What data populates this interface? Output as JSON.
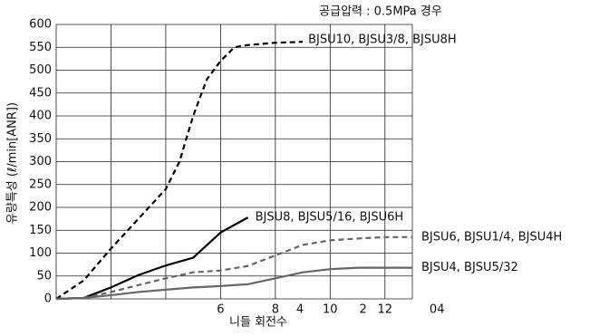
{
  "chart_data": {
    "type": "line",
    "annotation": "공급압력 : 0.5MPa 경우",
    "x_label": "니들 회전수",
    "y_label": "유량특성 (ℓ/min[ANR])",
    "xlim": [
      0,
      13
    ],
    "ylim": [
      0,
      600
    ],
    "yticks": [
      0,
      50,
      100,
      150,
      200,
      250,
      300,
      350,
      400,
      450,
      500,
      550,
      600
    ],
    "xgrid": [
      2,
      4,
      6,
      8,
      10,
      12
    ],
    "xticks": [
      6,
      8,
      10,
      12
    ],
    "x2ticks": [
      {
        "value": 8.9,
        "label": "4"
      },
      {
        "value": 11.2,
        "label": "2"
      },
      {
        "value": 13.9,
        "label": "04"
      }
    ],
    "grid": true,
    "series": [
      {
        "name": "BJSU10, BJSU3/8, BJSU8H",
        "color": "#000000",
        "dashed": true,
        "x": [
          0,
          1,
          2,
          3,
          4,
          4.5,
          5,
          5.5,
          6,
          6.5,
          7,
          8,
          9
        ],
        "values": [
          0,
          40,
          110,
          175,
          240,
          300,
          400,
          480,
          520,
          550,
          555,
          560,
          562
        ]
      },
      {
        "name": "BJSU8, BJSU5/16, BJSU6H",
        "color": "#000000",
        "dashed": false,
        "x": [
          0,
          1,
          2,
          3,
          4,
          5,
          6,
          7
        ],
        "values": [
          0,
          2,
          25,
          52,
          73,
          90,
          145,
          178
        ]
      },
      {
        "name": "BJSU6, BJSU1/4, BJSU4H",
        "color": "#666666",
        "dashed": true,
        "x": [
          0,
          1,
          2,
          3,
          4,
          5,
          6,
          7,
          8,
          9,
          10,
          11,
          12,
          13
        ],
        "values": [
          0,
          2,
          15,
          30,
          45,
          58,
          62,
          72,
          95,
          118,
          128,
          132,
          135,
          135
        ]
      },
      {
        "name": "BJSU4, BJSU5/32",
        "color": "#666666",
        "dashed": false,
        "x": [
          0,
          1,
          2,
          3,
          4,
          5,
          6,
          7,
          8,
          9,
          10,
          11,
          12,
          13
        ],
        "values": [
          0,
          2,
          8,
          15,
          20,
          25,
          28,
          32,
          45,
          58,
          65,
          68,
          68,
          68
        ]
      }
    ]
  }
}
